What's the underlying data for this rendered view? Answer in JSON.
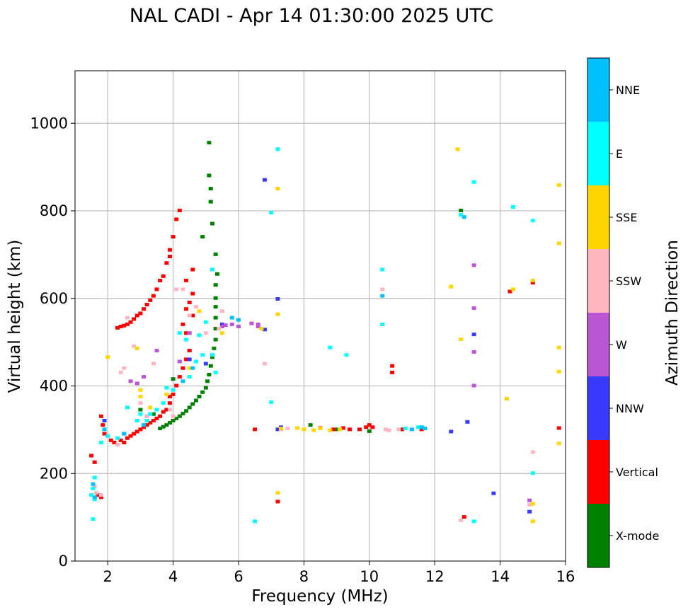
{
  "chart_data": {
    "type": "scatter",
    "title": "NAL CADI - Apr 14 01:30:00 2025 UTC",
    "xlabel": "Frequency (MHz)",
    "ylabel": "Virtual height (km)",
    "xlim": [
      1,
      16
    ],
    "ylim": [
      0,
      1120
    ],
    "xticks": [
      2,
      4,
      6,
      8,
      10,
      12,
      14,
      16
    ],
    "yticks": [
      0,
      200,
      400,
      600,
      800,
      1000
    ],
    "grid": true,
    "colorbar": {
      "title": "Azimuth Direction",
      "categories": [
        {
          "name": "X-mode",
          "color": "#008000"
        },
        {
          "name": "Vertical",
          "color": "#ff0000"
        },
        {
          "name": "NNW",
          "color": "#3a3aff"
        },
        {
          "name": "W",
          "color": "#ba55d3"
        },
        {
          "name": "SSW",
          "color": "#ffb6c1"
        },
        {
          "name": "SSE",
          "color": "#ffd700"
        },
        {
          "name": "E",
          "color": "#00ffff"
        },
        {
          "name": "NNE",
          "color": "#00bfff"
        }
      ]
    },
    "series": [
      {
        "name": "X-mode",
        "points": [
          [
            3.6,
            302
          ],
          [
            3.7,
            306
          ],
          [
            3.8,
            310
          ],
          [
            3.9,
            315
          ],
          [
            4.0,
            320
          ],
          [
            4.1,
            325
          ],
          [
            4.2,
            330
          ],
          [
            4.3,
            336
          ],
          [
            4.4,
            342
          ],
          [
            4.5,
            350
          ],
          [
            4.6,
            358
          ],
          [
            4.7,
            366
          ],
          [
            4.8,
            375
          ],
          [
            4.9,
            385
          ],
          [
            5.0,
            395
          ],
          [
            5.05,
            410
          ],
          [
            5.1,
            425
          ],
          [
            5.15,
            445
          ],
          [
            5.2,
            465
          ],
          [
            5.25,
            485
          ],
          [
            5.3,
            505
          ],
          [
            5.3,
            530
          ],
          [
            5.3,
            555
          ],
          [
            5.3,
            580
          ],
          [
            5.3,
            600
          ],
          [
            5.3,
            630
          ],
          [
            5.35,
            655
          ],
          [
            5.3,
            700
          ],
          [
            5.2,
            770
          ],
          [
            5.15,
            820
          ],
          [
            5.15,
            850
          ],
          [
            5.1,
            880
          ],
          [
            5.1,
            955
          ],
          [
            4.9,
            740
          ],
          [
            4.0,
            415
          ],
          [
            3.0,
            345
          ],
          [
            3.2,
            320
          ],
          [
            3.4,
            335
          ],
          [
            8.2,
            310
          ],
          [
            9.0,
            300
          ],
          [
            10.0,
            296
          ],
          [
            11.0,
            300
          ],
          [
            12.8,
            800
          ]
        ]
      },
      {
        "name": "Vertical",
        "points": [
          [
            1.8,
            330
          ],
          [
            1.85,
            310
          ],
          [
            1.9,
            290
          ],
          [
            2.0,
            285
          ],
          [
            2.1,
            275
          ],
          [
            2.2,
            270
          ],
          [
            2.3,
            265
          ],
          [
            2.4,
            275
          ],
          [
            2.5,
            270
          ],
          [
            2.6,
            280
          ],
          [
            2.7,
            285
          ],
          [
            2.8,
            290
          ],
          [
            2.9,
            295
          ],
          [
            3.0,
            300
          ],
          [
            3.1,
            305
          ],
          [
            3.2,
            310
          ],
          [
            3.3,
            315
          ],
          [
            3.4,
            320
          ],
          [
            3.5,
            325
          ],
          [
            3.6,
            330
          ],
          [
            3.7,
            340
          ],
          [
            3.8,
            345
          ],
          [
            3.9,
            360
          ],
          [
            3.9,
            375
          ],
          [
            4.0,
            380
          ],
          [
            4.1,
            400
          ],
          [
            4.2,
            420
          ],
          [
            4.3,
            440
          ],
          [
            4.4,
            460
          ],
          [
            4.5,
            480
          ],
          [
            4.4,
            520
          ],
          [
            4.6,
            560
          ],
          [
            4.6,
            610
          ],
          [
            4.6,
            665
          ],
          [
            4.4,
            640
          ],
          [
            4.1,
            780
          ],
          [
            4.2,
            800
          ],
          [
            4.0,
            740
          ],
          [
            3.9,
            710
          ],
          [
            3.9,
            695
          ],
          [
            3.8,
            680
          ],
          [
            3.7,
            650
          ],
          [
            3.6,
            640
          ],
          [
            3.5,
            620
          ],
          [
            3.4,
            605
          ],
          [
            3.3,
            595
          ],
          [
            3.2,
            585
          ],
          [
            3.1,
            575
          ],
          [
            3.0,
            565
          ],
          [
            2.9,
            560
          ],
          [
            2.8,
            552
          ],
          [
            2.7,
            545
          ],
          [
            2.6,
            540
          ],
          [
            2.5,
            537
          ],
          [
            2.4,
            535
          ],
          [
            2.3,
            532
          ],
          [
            4.3,
            540
          ],
          [
            4.4,
            575
          ],
          [
            4.5,
            590
          ],
          [
            1.7,
            150
          ],
          [
            1.8,
            145
          ],
          [
            1.5,
            240
          ],
          [
            1.6,
            225
          ],
          [
            8.5,
            303
          ],
          [
            8.9,
            300
          ],
          [
            9.2,
            303
          ],
          [
            9.4,
            300
          ],
          [
            9.7,
            300
          ],
          [
            9.9,
            305
          ],
          [
            10.0,
            310
          ],
          [
            10.1,
            305
          ],
          [
            10.7,
            445
          ],
          [
            10.7,
            430
          ],
          [
            11.0,
            300
          ],
          [
            11.6,
            300
          ],
          [
            12.9,
            100
          ],
          [
            14.3,
            615
          ],
          [
            15.0,
            635
          ],
          [
            15.8,
            303
          ],
          [
            7.2,
            135
          ],
          [
            6.5,
            300
          ]
        ]
      },
      {
        "name": "NNW",
        "points": [
          [
            1.9,
            320
          ],
          [
            2.5,
            290
          ],
          [
            3.2,
            330
          ],
          [
            4.5,
            460
          ],
          [
            5.0,
            450
          ],
          [
            5.5,
            540
          ],
          [
            6.8,
            870
          ],
          [
            6.8,
            528
          ],
          [
            7.2,
            598
          ],
          [
            7.2,
            300
          ],
          [
            12.5,
            295
          ],
          [
            13.0,
            317
          ],
          [
            13.2,
            517
          ],
          [
            13.8,
            154
          ],
          [
            14.9,
            112
          ],
          [
            7.3,
            305
          ]
        ]
      },
      {
        "name": "W",
        "points": [
          [
            2.7,
            410
          ],
          [
            2.9,
            405
          ],
          [
            3.5,
            480
          ],
          [
            4.2,
            455
          ],
          [
            4.5,
            520
          ],
          [
            5.5,
            535
          ],
          [
            5.6,
            538
          ],
          [
            5.8,
            540
          ],
          [
            6.0,
            535
          ],
          [
            6.4,
            542
          ],
          [
            6.6,
            540
          ],
          [
            6.6,
            535
          ],
          [
            13.2,
            675
          ],
          [
            13.2,
            577
          ],
          [
            13.2,
            477
          ],
          [
            13.2,
            400
          ],
          [
            14.9,
            138
          ],
          [
            3.1,
            420
          ]
        ]
      },
      {
        "name": "SSW",
        "points": [
          [
            1.6,
            170
          ],
          [
            1.65,
            155
          ],
          [
            1.8,
            150
          ],
          [
            2.3,
            265
          ],
          [
            2.4,
            430
          ],
          [
            2.5,
            440
          ],
          [
            2.6,
            555
          ],
          [
            2.8,
            490
          ],
          [
            3.0,
            360
          ],
          [
            3.2,
            330
          ],
          [
            3.4,
            450
          ],
          [
            3.9,
            345
          ],
          [
            4.0,
            330
          ],
          [
            4.3,
            620
          ],
          [
            4.5,
            560
          ],
          [
            4.7,
            580
          ],
          [
            5.0,
            520
          ],
          [
            5.5,
            570
          ],
          [
            5.4,
            530
          ],
          [
            6.8,
            450
          ],
          [
            7.3,
            300
          ],
          [
            7.5,
            302
          ],
          [
            10.4,
            620
          ],
          [
            10.5,
            300
          ],
          [
            10.6,
            298
          ],
          [
            10.9,
            300
          ],
          [
            12.8,
            92
          ],
          [
            15.0,
            248
          ],
          [
            14.9,
            128
          ],
          [
            4.1,
            620
          ]
        ]
      },
      {
        "name": "SSE",
        "points": [
          [
            2.0,
            465
          ],
          [
            2.9,
            485
          ],
          [
            3.0,
            390
          ],
          [
            3.0,
            375
          ],
          [
            3.3,
            350
          ],
          [
            3.8,
            380
          ],
          [
            4.5,
            440
          ],
          [
            4.8,
            570
          ],
          [
            5.5,
            520
          ],
          [
            6.7,
            530
          ],
          [
            7.2,
            850
          ],
          [
            7.2,
            563
          ],
          [
            7.2,
            155
          ],
          [
            7.8,
            303
          ],
          [
            8.0,
            300
          ],
          [
            8.3,
            298
          ],
          [
            8.5,
            302
          ],
          [
            8.8,
            298
          ],
          [
            9.1,
            300
          ],
          [
            12.5,
            626
          ],
          [
            12.7,
            940
          ],
          [
            12.8,
            506
          ],
          [
            14.2,
            370
          ],
          [
            14.4,
            620
          ],
          [
            15.0,
            640
          ],
          [
            15.0,
            130
          ],
          [
            15.0,
            90
          ],
          [
            15.8,
            858
          ],
          [
            15.8,
            725
          ],
          [
            15.8,
            487
          ],
          [
            15.8,
            432
          ],
          [
            15.8,
            268
          ],
          [
            7.3,
            302
          ]
        ]
      },
      {
        "name": "E",
        "points": [
          [
            1.5,
            150
          ],
          [
            1.55,
            165
          ],
          [
            1.6,
            190
          ],
          [
            1.55,
            95
          ],
          [
            1.6,
            140
          ],
          [
            1.8,
            270
          ],
          [
            2.0,
            285
          ],
          [
            2.3,
            280
          ],
          [
            2.6,
            350
          ],
          [
            2.9,
            320
          ],
          [
            3.0,
            335
          ],
          [
            3.2,
            320
          ],
          [
            3.3,
            335
          ],
          [
            3.5,
            345
          ],
          [
            3.7,
            360
          ],
          [
            3.8,
            395
          ],
          [
            4.0,
            390
          ],
          [
            4.2,
            520
          ],
          [
            4.4,
            505
          ],
          [
            4.5,
            420
          ],
          [
            4.7,
            455
          ],
          [
            4.8,
            515
          ],
          [
            4.9,
            470
          ],
          [
            5.0,
            545
          ],
          [
            5.2,
            470
          ],
          [
            5.3,
            430
          ],
          [
            5.2,
            665
          ],
          [
            6.5,
            90
          ],
          [
            7.0,
            362
          ],
          [
            7.0,
            795
          ],
          [
            7.2,
            940
          ],
          [
            8.8,
            487
          ],
          [
            9.3,
            470
          ],
          [
            10.4,
            665
          ],
          [
            10.4,
            540
          ],
          [
            11.1,
            302
          ],
          [
            11.5,
            305
          ],
          [
            13.2,
            865
          ],
          [
            13.2,
            90
          ],
          [
            14.4,
            808
          ],
          [
            15.0,
            777
          ],
          [
            15.0,
            200
          ],
          [
            12.8,
            790
          ]
        ]
      },
      {
        "name": "NNE",
        "points": [
          [
            1.6,
            145
          ],
          [
            1.55,
            175
          ],
          [
            1.9,
            300
          ],
          [
            2.5,
            290
          ],
          [
            3.1,
            310
          ],
          [
            4.3,
            410
          ],
          [
            4.6,
            440
          ],
          [
            5.8,
            555
          ],
          [
            6.0,
            550
          ],
          [
            11.3,
            300
          ],
          [
            11.6,
            305
          ],
          [
            11.7,
            302
          ],
          [
            12.9,
            785
          ],
          [
            10.4,
            605
          ]
        ]
      }
    ]
  }
}
